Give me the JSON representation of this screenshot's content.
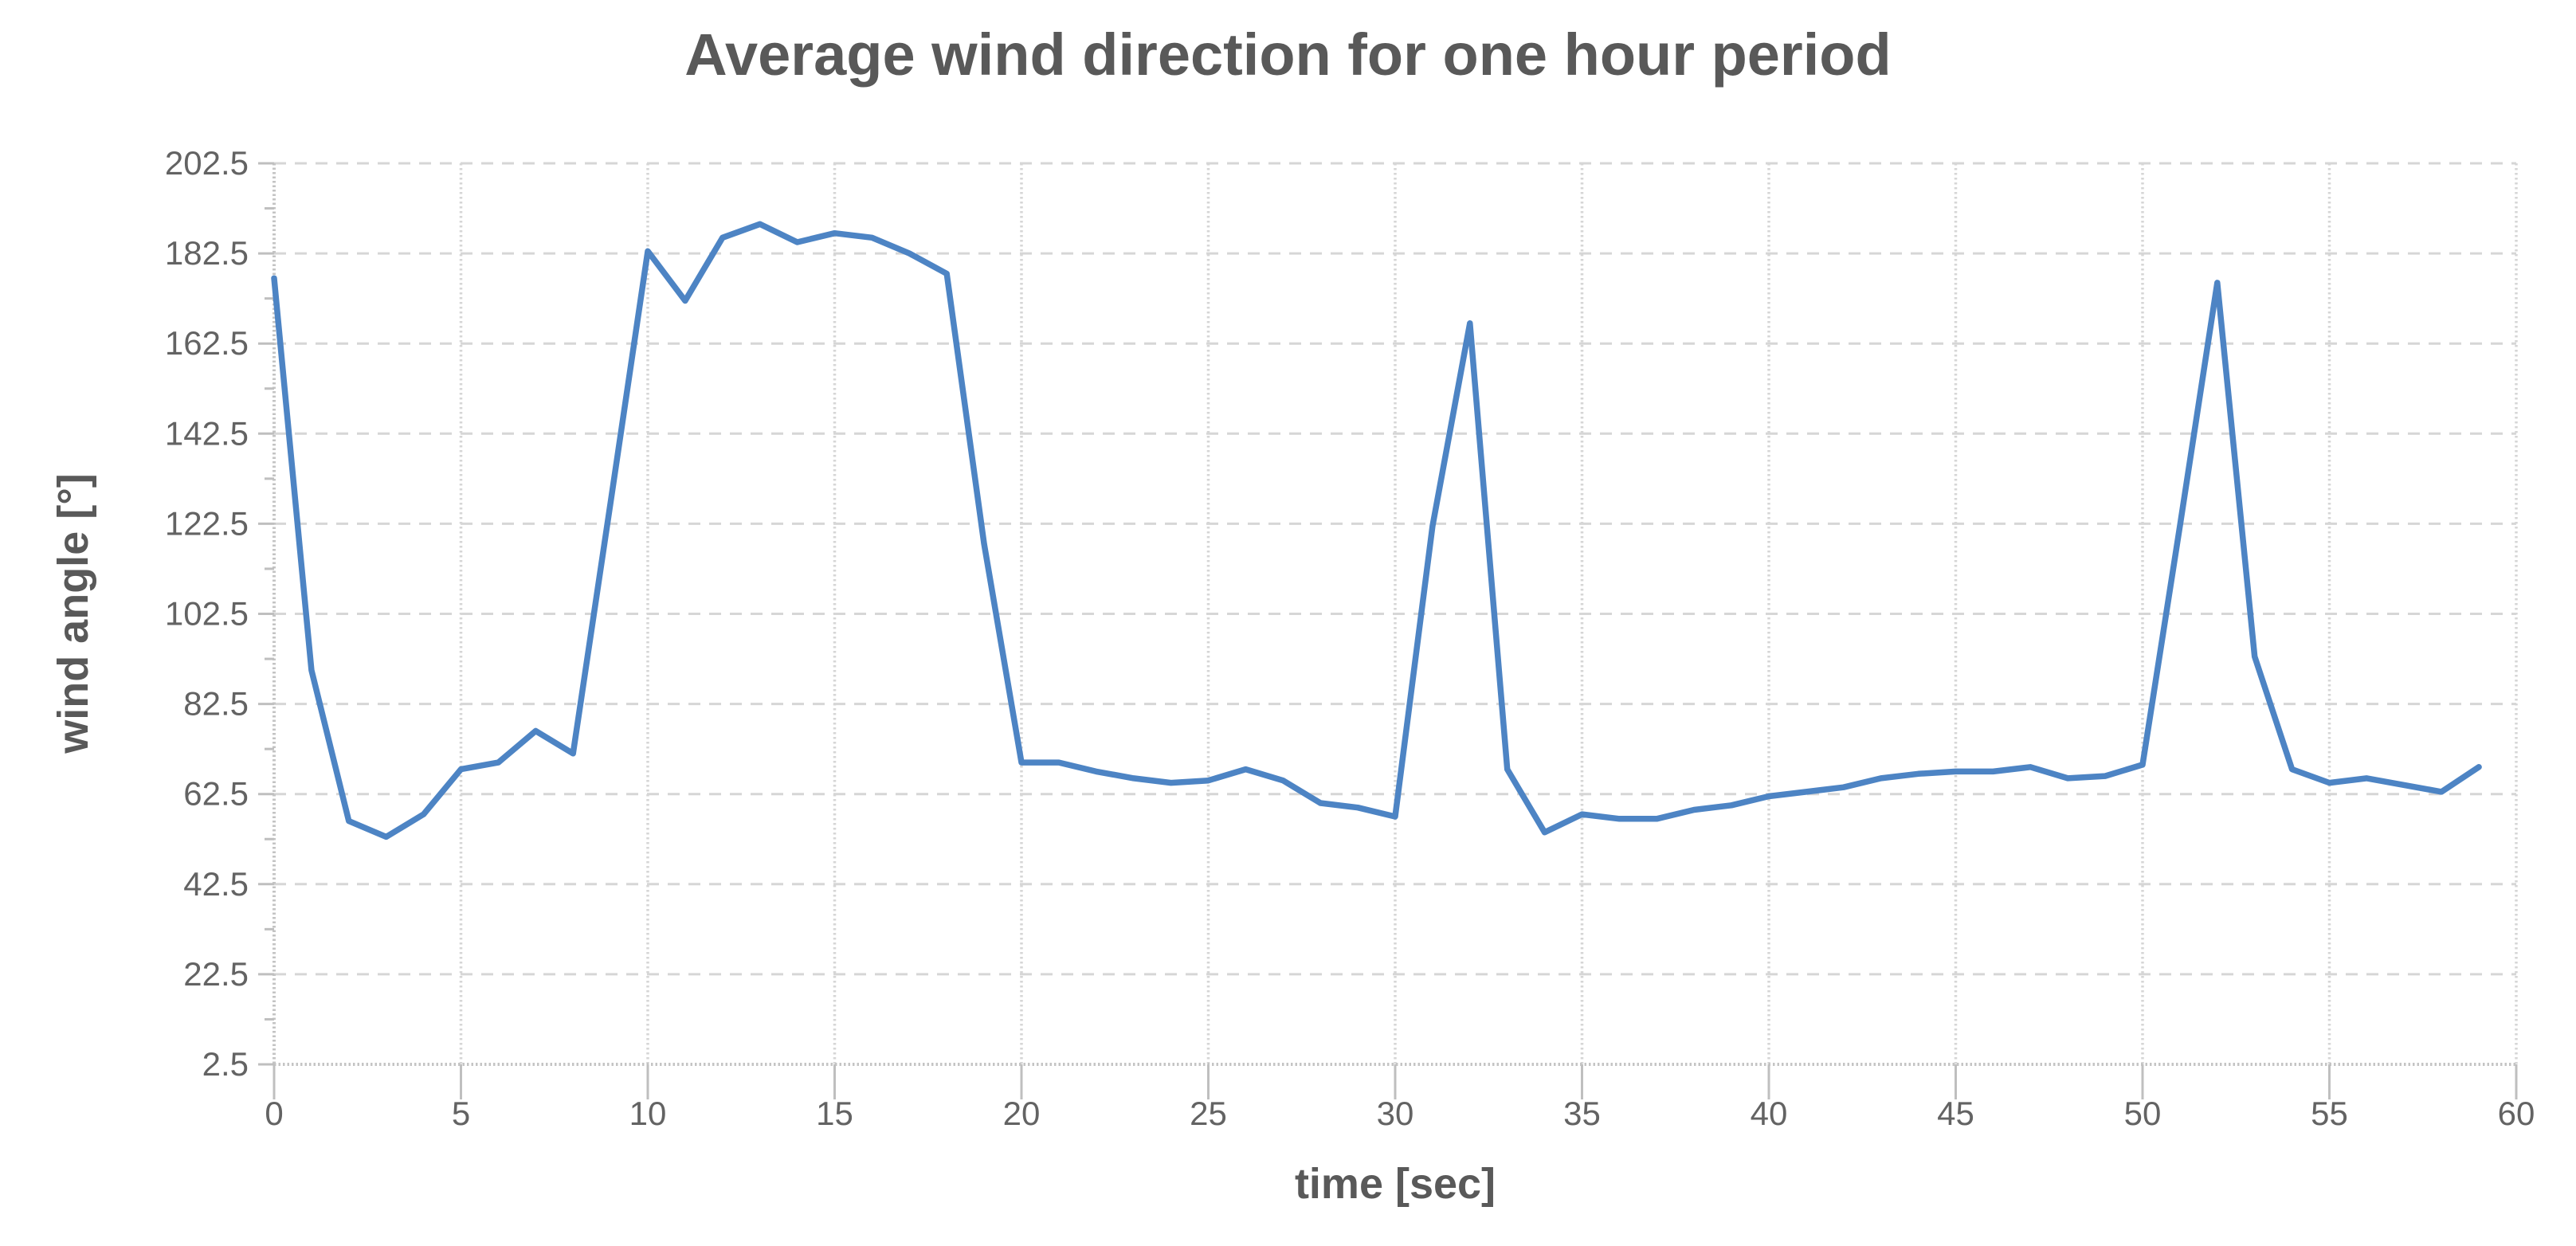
{
  "chart": {
    "title": "Average wind direction for one hour period",
    "x_axis_title": "time [sec]",
    "y_axis_title": "wind angle [°]"
  },
  "chart_data": {
    "type": "line",
    "title": "Average wind direction for one hour period",
    "xlabel": "time [sec]",
    "ylabel": "wind angle [°]",
    "xlim": [
      0,
      60
    ],
    "ylim": [
      2.5,
      202.5
    ],
    "grid": true,
    "legend": false,
    "line_color": "#4D84C4",
    "grid_color": "#D6D6D6",
    "axis_color": "#C4C4C4",
    "tick_color": "#BFBFBF",
    "x_ticks": [
      0,
      5,
      10,
      15,
      20,
      25,
      30,
      35,
      40,
      45,
      50,
      55,
      60
    ],
    "x_tick_labels": [
      "0",
      "5",
      "10",
      "15",
      "20",
      "25",
      "30",
      "35",
      "40",
      "45",
      "50",
      "55",
      "60"
    ],
    "y_ticks": [
      2.5,
      22.5,
      42.5,
      62.5,
      82.5,
      102.5,
      122.5,
      142.5,
      162.5,
      182.5,
      202.5
    ],
    "y_tick_labels": [
      "2.5",
      "22.5",
      "42.5",
      "62.5",
      "82.5",
      "102.5",
      "122.5",
      "142.5",
      "162.5",
      "182.5",
      "202.5"
    ],
    "x": [
      0,
      1,
      2,
      3,
      4,
      5,
      6,
      7,
      8,
      9,
      10,
      11,
      12,
      13,
      14,
      15,
      16,
      17,
      18,
      19,
      20,
      21,
      22,
      23,
      24,
      25,
      26,
      27,
      28,
      29,
      30,
      31,
      32,
      33,
      34,
      35,
      36,
      37,
      38,
      39,
      40,
      41,
      42,
      43,
      44,
      45,
      46,
      47,
      48,
      49,
      50,
      51,
      52,
      53,
      54,
      55,
      56,
      57,
      58,
      59
    ],
    "y": [
      177,
      90,
      56.5,
      53,
      58,
      68,
      69.5,
      76.5,
      71.5,
      127,
      183,
      172,
      186,
      189,
      185,
      187,
      186,
      182.5,
      178,
      118,
      69.5,
      69.5,
      67.5,
      66,
      65,
      65.5,
      68,
      65.5,
      60.5,
      59.5,
      57.5,
      122,
      167,
      68,
      54,
      58,
      57,
      57,
      59,
      60,
      62,
      63,
      64,
      66,
      67,
      67.5,
      67.5,
      68.5,
      66,
      66.5,
      69,
      122,
      176,
      93,
      68,
      65,
      66,
      64.5,
      63,
      68.5
    ]
  }
}
